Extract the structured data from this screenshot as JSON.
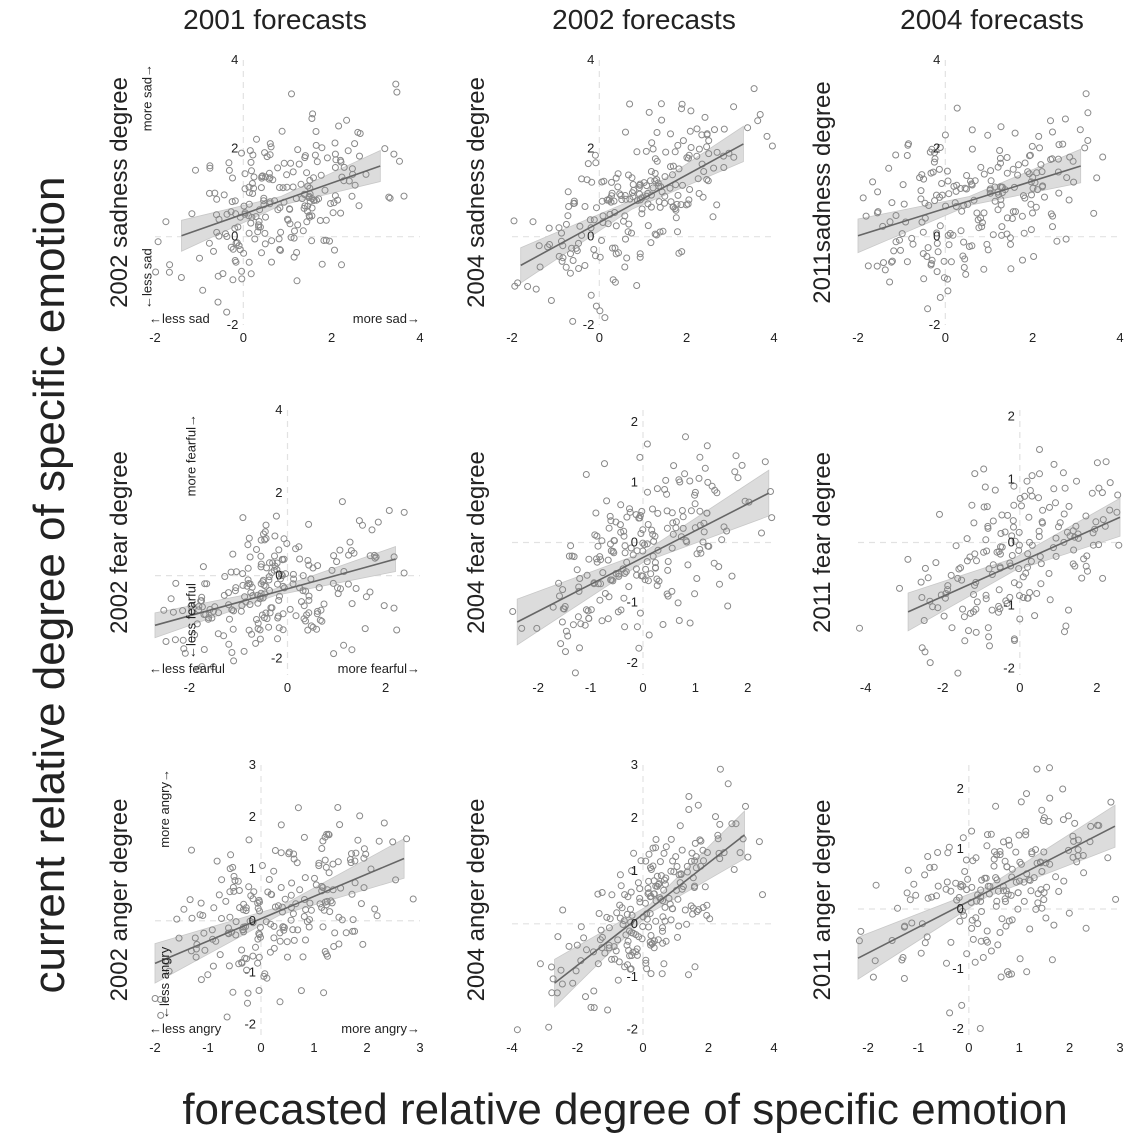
{
  "column_titles": [
    "2001 forecasts",
    "2002 forecasts",
    "2004 forecasts"
  ],
  "y_main_label": "current relative degree of specific emotion",
  "x_main_label": "forecasted relative degree of specific emotion",
  "colors": {
    "point": "#888888",
    "line": "#666666",
    "band": "#dcdcdc",
    "guide": "#e2e2e2",
    "text": "#222222"
  },
  "chart_data": [
    {
      "type": "scatter",
      "ylabel": "2002 sadness degree",
      "xlim": [
        -2,
        4
      ],
      "ylim": [
        -2,
        4
      ],
      "xticks": [
        -2,
        0,
        2,
        4
      ],
      "yticks": [
        -2,
        0,
        2,
        4
      ],
      "fit": {
        "x": [
          -1.4,
          3.1
        ],
        "y": [
          0.02,
          1.6
        ],
        "band_end": 0.35,
        "band_mid": 0.1
      },
      "annotations": {
        "x_neg": "←less sad",
        "x_pos": "more sad→",
        "y_neg": "←less sad",
        "y_pos": "more sad→"
      },
      "n_points": 230,
      "slope": 0.36,
      "spread": 0.85,
      "seed": 11
    },
    {
      "type": "scatter",
      "ylabel": "2004 sadness degree",
      "xlim": [
        -2,
        4
      ],
      "ylim": [
        -2,
        4
      ],
      "xticks": [
        -2,
        0,
        2,
        4
      ],
      "yticks": [
        -2,
        0,
        2,
        4
      ],
      "fit": {
        "x": [
          -1.8,
          3.3
        ],
        "y": [
          -0.65,
          2.1
        ],
        "band_end": 0.4,
        "band_mid": 0.1
      },
      "n_points": 230,
      "slope": 0.54,
      "spread": 0.75,
      "seed": 23
    },
    {
      "type": "scatter",
      "ylabel": "2011sadness  degree",
      "xlim": [
        -2,
        4
      ],
      "ylim": [
        -2,
        4
      ],
      "xticks": [
        -2,
        0,
        2,
        4
      ],
      "yticks": [
        -2,
        0,
        2,
        4
      ],
      "fit": {
        "x": [
          -2.0,
          3.1
        ],
        "y": [
          0.02,
          1.6
        ],
        "band_end": 0.38,
        "band_mid": 0.1
      },
      "n_points": 230,
      "slope": 0.31,
      "spread": 0.9,
      "seed": 37
    },
    {
      "type": "scatter",
      "ylabel": "2002 fear degree",
      "xlim": [
        -2.7,
        2.7
      ],
      "ylim": [
        -2.4,
        4
      ],
      "xticks": [
        -2,
        0,
        2
      ],
      "yticks": [
        -2,
        0,
        2,
        4
      ],
      "fit": {
        "x": [
          -2.7,
          2.2
        ],
        "y": [
          -1.2,
          0.4
        ],
        "band_end": 0.3,
        "band_mid": 0.08
      },
      "annotations": {
        "x_neg": "←less fearful",
        "x_pos": "more fearful→",
        "y_neg": "←less fearful",
        "y_pos": "more fearful→"
      },
      "n_points": 230,
      "slope": 0.33,
      "spread": 0.75,
      "seed": 41
    },
    {
      "type": "scatter",
      "ylabel": "2004 fear degree",
      "xlim": [
        -2.5,
        2.5
      ],
      "ylim": [
        -2.2,
        2.2
      ],
      "xticks": [
        -2,
        -1,
        0,
        1,
        2
      ],
      "yticks": [
        -2,
        -1,
        0,
        1,
        2
      ],
      "fit": {
        "x": [
          -2.4,
          2.4
        ],
        "y": [
          -1.32,
          0.82
        ],
        "band_end": 0.38,
        "band_mid": 0.08
      },
      "n_points": 230,
      "slope": 0.45,
      "spread": 0.75,
      "seed": 53
    },
    {
      "type": "scatter",
      "ylabel": "2011 fear degree",
      "xlim": [
        -4.2,
        2.6
      ],
      "ylim": [
        -2.1,
        2.1
      ],
      "xticks": [
        -4,
        -2,
        0,
        2
      ],
      "yticks": [
        -2,
        -1,
        0,
        1,
        2
      ],
      "fit": {
        "x": [
          -2.9,
          2.6
        ],
        "y": [
          -1.1,
          0.4
        ],
        "band_end": 0.3,
        "band_mid": 0.1
      },
      "n_points": 200,
      "slope": 0.27,
      "spread": 0.65,
      "seed": 67
    },
    {
      "type": "scatter",
      "ylabel": "2002 anger degree",
      "xlim": [
        -2,
        3
      ],
      "ylim": [
        -2.2,
        3
      ],
      "xticks": [
        -2,
        -1,
        0,
        1,
        2,
        3
      ],
      "yticks": [
        -2,
        -1,
        0,
        1,
        2,
        3
      ],
      "fit": {
        "x": [
          -2.0,
          2.7
        ],
        "y": [
          -0.82,
          1.2
        ],
        "band_end": 0.38,
        "band_mid": 0.08
      },
      "annotations": {
        "x_neg": "←less angry",
        "x_pos": "more angry→",
        "y_neg": "←less angry",
        "y_pos": "more angry→"
      },
      "n_points": 230,
      "slope": 0.43,
      "spread": 0.8,
      "seed": 71
    },
    {
      "type": "scatter",
      "ylabel": "2004 anger degree",
      "xlim": [
        -4,
        4
      ],
      "ylim": [
        -2.1,
        3
      ],
      "xticks": [
        -4,
        -2,
        0,
        2,
        4
      ],
      "yticks": [
        -2,
        -1,
        0,
        1,
        2,
        3
      ],
      "fit": {
        "x": [
          -2.7,
          3.1
        ],
        "y": [
          -1.12,
          1.68
        ],
        "band_end": 0.45,
        "band_mid": 0.08
      },
      "n_points": 230,
      "slope": 0.48,
      "spread": 0.65,
      "seed": 83
    },
    {
      "type": "scatter",
      "ylabel": "2011 anger degree",
      "xlim": [
        -2.2,
        3
      ],
      "ylim": [
        -2.1,
        2.4
      ],
      "xticks": [
        -2,
        -1,
        0,
        1,
        2,
        3
      ],
      "yticks": [
        -2,
        -1,
        0,
        1,
        2
      ],
      "fit": {
        "x": [
          -2.2,
          2.9
        ],
        "y": [
          -0.82,
          1.38
        ],
        "band_end": 0.35,
        "band_mid": 0.08
      },
      "n_points": 210,
      "slope": 0.43,
      "spread": 0.75,
      "seed": 97
    }
  ]
}
